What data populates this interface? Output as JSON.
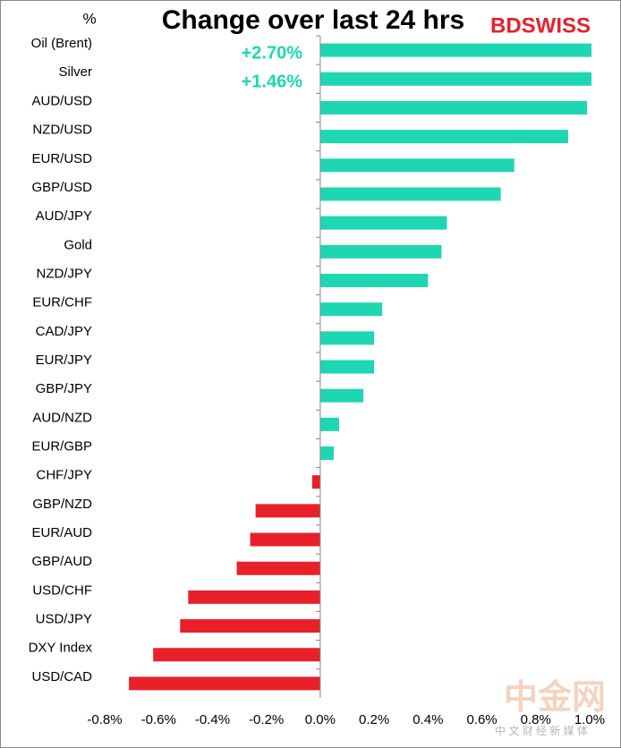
{
  "chart_data": {
    "type": "hbar",
    "title": "Change over last 24 hrs",
    "unit_label": "%",
    "brand": "BDSWISS",
    "watermark": "中金网",
    "watermark_sub": "中 文 财 经 新 媒 体",
    "categories": [
      "Oil (Brent)",
      "Silver",
      "AUD/USD",
      "NZD/USD",
      "EUR/USD",
      "GBP/USD",
      "AUD/JPY",
      "Gold",
      "NZD/JPY",
      "EUR/CHF",
      "CAD/JPY",
      "EUR/JPY",
      "GBP/JPY",
      "AUD/NZD",
      "EUR/GBP",
      "CHF/JPY",
      "GBP/NZD",
      "EUR/AUD",
      "GBP/AUD",
      "USD/CHF",
      "USD/JPY",
      "DXY Index",
      "USD/CAD"
    ],
    "values": [
      2.7,
      1.46,
      0.99,
      0.92,
      0.72,
      0.67,
      0.47,
      0.45,
      0.4,
      0.23,
      0.2,
      0.2,
      0.16,
      0.07,
      0.05,
      -0.03,
      -0.24,
      -0.26,
      -0.31,
      -0.49,
      -0.52,
      -0.62,
      -0.71
    ],
    "value_labels": [
      "+2.70%",
      "+1.46%",
      null,
      null,
      null,
      null,
      null,
      null,
      null,
      null,
      null,
      null,
      null,
      null,
      null,
      null,
      null,
      null,
      null,
      null,
      null,
      null,
      null
    ],
    "positive_color": "#1dd6b2",
    "negative_color": "#e8202a",
    "label_color": "#1dd6b2",
    "xlim": [
      -0.8,
      1.0
    ],
    "xticks": [
      {
        "value": -0.8,
        "label": "-0.8%"
      },
      {
        "value": -0.6,
        "label": "-0.6%"
      },
      {
        "value": -0.4,
        "label": "-0.4%"
      },
      {
        "value": -0.2,
        "label": "-0.2%"
      },
      {
        "value": 0,
        "label": "0.0%"
      },
      {
        "value": 0.2,
        "label": "0.2%"
      },
      {
        "value": 0.4,
        "label": "0.4%"
      },
      {
        "value": 0.6,
        "label": "0.6%"
      },
      {
        "value": 0.8,
        "label": "0.8%"
      },
      {
        "value": 1.0,
        "label": "1.0%"
      }
    ],
    "grid": false
  }
}
